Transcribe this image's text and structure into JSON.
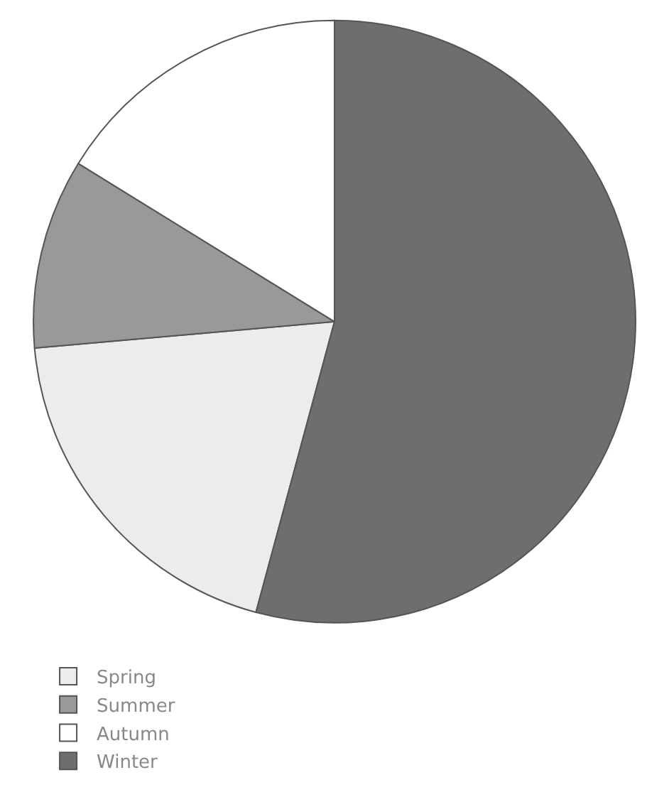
{
  "chart_data": {
    "type": "pie",
    "categories": [
      "Spring",
      "Summer",
      "Autumn",
      "Winter"
    ],
    "values": [
      19.4,
      10.2,
      16.2,
      54.2
    ],
    "colors": [
      "#ececec",
      "#999999",
      "#ffffff",
      "#6e6e6e"
    ],
    "legend": "bottom left"
  }
}
